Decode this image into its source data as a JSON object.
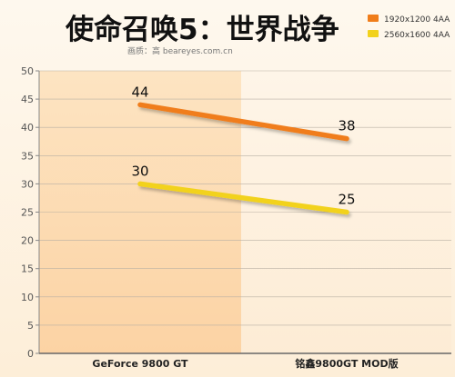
{
  "chart_data": {
    "type": "line",
    "title": "使命召唤5：世界战争",
    "subtitle": "画质：高 beareyes.com.cn",
    "categories": [
      "GeForce 9800 GT",
      "铭鑫9800GT MOD版"
    ],
    "ylim": [
      0,
      50
    ],
    "yticks": [
      0,
      5,
      10,
      15,
      20,
      25,
      30,
      35,
      40,
      45,
      50
    ],
    "grid": true,
    "legend_position": "top-right",
    "series": [
      {
        "name": "1920x1200 4AA",
        "values": [
          44,
          38
        ],
        "color": "#f07d1a"
      },
      {
        "name": "2560x1600 4AA",
        "values": [
          30,
          25
        ],
        "color": "#f2d21c"
      }
    ]
  }
}
